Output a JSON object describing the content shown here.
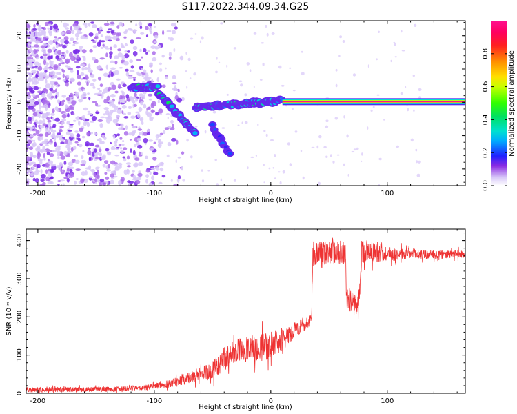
{
  "figure_title": "S117.2022.344.09.34.G25",
  "colors": {
    "snr_line": "#ee3333",
    "axis": "#000000",
    "background": "#ffffff"
  },
  "chart_data": [
    {
      "type": "heatmap",
      "title": "",
      "xlabel": "Height of straight line (km)",
      "ylabel": "Frequency (Hz)",
      "xlim": [
        -210,
        167
      ],
      "ylim": [
        -25,
        24.5
      ],
      "x_ticks": [
        -200,
        -100,
        0,
        100
      ],
      "y_ticks": [
        -20,
        -10,
        0,
        10,
        20
      ],
      "grid": false,
      "colormap": "rainbow-white",
      "colorbar": {
        "label": "Normalized spectral amplitude",
        "range": [
          0,
          1
        ],
        "ticks": [
          0.0,
          0.2,
          0.4,
          0.6,
          0.8
        ]
      },
      "features": [
        {
          "name": "scattered noise",
          "x_range": [
            -210,
            -75
          ],
          "f_range": [
            -25,
            24
          ],
          "amplitude": 0.12
        },
        {
          "name": "flat segment",
          "x_start": -120,
          "x_end": -97,
          "f_start": 4.5,
          "f_end": 4.5,
          "amplitude": 0.35
        },
        {
          "name": "descending segment",
          "x_start": -97,
          "x_end": -65,
          "f_start": 3,
          "f_end": -9.5,
          "amplitude": 0.33
        },
        {
          "name": "secondary trace",
          "x_start": -50,
          "x_end": -35,
          "f_start": -7,
          "f_end": -16,
          "amplitude": 0.18
        },
        {
          "name": "approach segment",
          "x_start": -65,
          "x_end": 10,
          "f_start": -1.5,
          "f_end": 0.5,
          "amplitude": 0.3
        },
        {
          "name": "carrier line",
          "x_start": 10,
          "x_end": 167,
          "f_start": 0.2,
          "f_end": 0.2,
          "amplitude": 1.0
        }
      ]
    },
    {
      "type": "line",
      "title": "",
      "xlabel": "Height of straight line (km)",
      "ylabel": "SNR (10 * v/v)",
      "xlim": [
        -210,
        167
      ],
      "ylim": [
        0,
        430
      ],
      "x_ticks": [
        -200,
        -100,
        0,
        100
      ],
      "y_ticks": [
        0,
        100,
        200,
        300,
        400
      ],
      "grid": false,
      "series": [
        {
          "color": "#ee3333",
          "noise_seed": 7,
          "x": [
            -210,
            -170,
            -130,
            -100,
            -80,
            -65,
            -50,
            -40,
            -30,
            -20,
            -10,
            0,
            10,
            20,
            30,
            35,
            36,
            40,
            50,
            60,
            64,
            65,
            70,
            72,
            74,
            76,
            78,
            80,
            90,
            100,
            120,
            140,
            167
          ],
          "y": [
            10,
            10,
            11,
            18,
            30,
            45,
            60,
            90,
            110,
            115,
            120,
            125,
            140,
            165,
            180,
            195,
            360,
            365,
            370,
            370,
            365,
            250,
            240,
            230,
            225,
            260,
            370,
            375,
            370,
            365,
            365,
            362,
            365
          ],
          "noise_amplitude": [
            8,
            8,
            8,
            10,
            15,
            22,
            30,
            38,
            40,
            42,
            45,
            48,
            35,
            25,
            20,
            18,
            40,
            40,
            38,
            40,
            35,
            40,
            35,
            35,
            35,
            35,
            40,
            40,
            35,
            25,
            18,
            15,
            12
          ]
        }
      ]
    }
  ]
}
